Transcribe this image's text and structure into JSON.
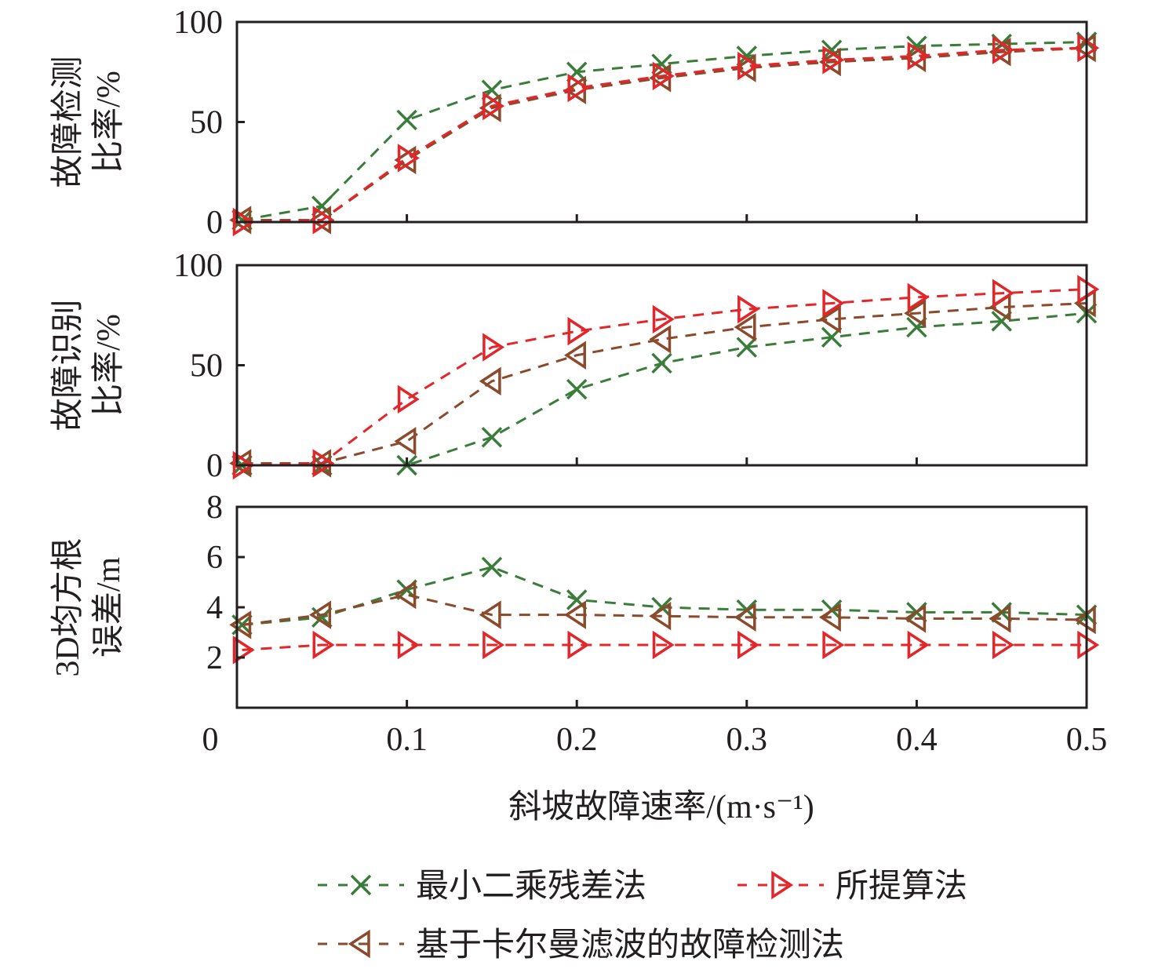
{
  "chart_data": [
    {
      "type": "line",
      "panel": "top",
      "ylabel_lines": [
        "故障检测",
        "比率/%"
      ],
      "ylim": [
        0,
        100
      ],
      "yticks": [
        0,
        50,
        100
      ],
      "xlim": [
        0,
        0.5
      ],
      "x": [
        0.003,
        0.05,
        0.1,
        0.15,
        0.2,
        0.25,
        0.3,
        0.35,
        0.4,
        0.45,
        0.5
      ],
      "series": [
        {
          "name": "最小二乘残差法",
          "key": "ls",
          "values": [
            1,
            8,
            51,
            66,
            75,
            79,
            83,
            86,
            88,
            89,
            90
          ]
        },
        {
          "name": "基于卡尔曼滤波的故障检测法",
          "key": "kf",
          "values": [
            1,
            1,
            31,
            57,
            66,
            72,
            77,
            80,
            82,
            85,
            87
          ]
        },
        {
          "name": "所提算法",
          "key": "prop",
          "values": [
            0,
            1,
            32,
            58,
            67,
            73,
            78,
            81,
            83,
            86,
            87
          ]
        }
      ]
    },
    {
      "type": "line",
      "panel": "middle",
      "ylabel_lines": [
        "故障识别",
        "比率/%"
      ],
      "ylim": [
        0,
        100
      ],
      "yticks": [
        0,
        50,
        100
      ],
      "xlim": [
        0,
        0.5
      ],
      "x": [
        0.003,
        0.05,
        0.1,
        0.15,
        0.2,
        0.25,
        0.3,
        0.35,
        0.4,
        0.45,
        0.5
      ],
      "series": [
        {
          "name": "最小二乘残差法",
          "key": "ls",
          "values": [
            0,
            0,
            0,
            14,
            38,
            51,
            59,
            64,
            69,
            72,
            76
          ]
        },
        {
          "name": "基于卡尔曼滤波的故障检测法",
          "key": "kf",
          "values": [
            1,
            1,
            12,
            42,
            55,
            63,
            69,
            73,
            76,
            79,
            81
          ]
        },
        {
          "name": "所提算法",
          "key": "prop",
          "values": [
            0,
            1,
            33,
            59,
            67,
            73,
            78,
            81,
            84,
            86,
            88
          ]
        }
      ]
    },
    {
      "type": "line",
      "panel": "bottom",
      "ylabel_lines": [
        "3D均方根",
        "误差/m"
      ],
      "ylim": [
        0,
        8
      ],
      "yticks": [
        2,
        4,
        6,
        8
      ],
      "xlim": [
        0,
        0.5
      ],
      "x": [
        0.003,
        0.05,
        0.1,
        0.15,
        0.2,
        0.25,
        0.3,
        0.35,
        0.4,
        0.45,
        0.5
      ],
      "xticks": [
        0,
        0.1,
        0.2,
        0.3,
        0.4,
        0.5
      ],
      "xtick_labels": [
        "0",
        "0.1",
        "0.2",
        "0.3",
        "0.4",
        "0.5"
      ],
      "xlabel": "斜坡故障速率/(m·s⁻¹)",
      "series": [
        {
          "name": "最小二乘残差法",
          "key": "ls",
          "values": [
            3.3,
            3.6,
            4.7,
            5.6,
            4.3,
            4.0,
            3.9,
            3.9,
            3.8,
            3.8,
            3.7
          ]
        },
        {
          "name": "基于卡尔曼滤波的故障检测法",
          "key": "kf",
          "values": [
            3.3,
            3.7,
            4.5,
            3.7,
            3.7,
            3.65,
            3.6,
            3.6,
            3.55,
            3.55,
            3.5
          ]
        },
        {
          "name": "所提算法",
          "key": "prop",
          "values": [
            2.3,
            2.5,
            2.5,
            2.5,
            2.5,
            2.5,
            2.5,
            2.5,
            2.5,
            2.5,
            2.5
          ]
        }
      ]
    }
  ],
  "styles": {
    "ls": {
      "color": "#3a7d3a",
      "marker": "x"
    },
    "kf": {
      "color": "#8b4a2b",
      "marker": "triangle-left"
    },
    "prop": {
      "color": "#e3262a",
      "marker": "triangle-right"
    }
  },
  "legend": {
    "placement": "bottom-center",
    "items": [
      {
        "key": "ls",
        "label": "最小二乘残差法"
      },
      {
        "key": "prop",
        "label": "所提算法"
      },
      {
        "key": "kf",
        "label": "基于卡尔曼滤波的故障检测法"
      }
    ]
  },
  "axis_color": "#231f20"
}
